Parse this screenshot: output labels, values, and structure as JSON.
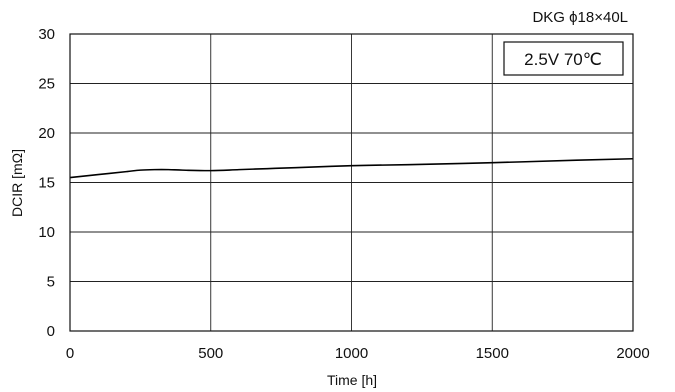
{
  "chart_data": {
    "type": "line",
    "title": "DKG ϕ18×40L",
    "annotation": "2.5V 70℃",
    "xlabel": "Time [h]",
    "ylabel": "DCIR [mΩ]",
    "xlim": [
      0,
      2000
    ],
    "ylim": [
      0,
      30
    ],
    "x_ticks": [
      "0",
      "500",
      "1000",
      "1500",
      "2000"
    ],
    "y_ticks": [
      "0",
      "5",
      "10",
      "15",
      "20",
      "25",
      "30"
    ],
    "x_tick_values": [
      0,
      500,
      1000,
      1500,
      2000
    ],
    "y_tick_values": [
      0,
      5,
      10,
      15,
      20,
      25,
      30
    ],
    "grid": true,
    "series": [
      {
        "color": "#000000",
        "x": [
          0,
          100,
          200,
          250,
          300,
          350,
          400,
          500,
          600,
          700,
          800,
          1000,
          1200,
          1500,
          1800,
          2000
        ],
        "y": [
          15.5,
          15.8,
          16.1,
          16.25,
          16.3,
          16.3,
          16.25,
          16.2,
          16.3,
          16.4,
          16.5,
          16.7,
          16.8,
          17.0,
          17.25,
          17.4
        ]
      }
    ]
  }
}
